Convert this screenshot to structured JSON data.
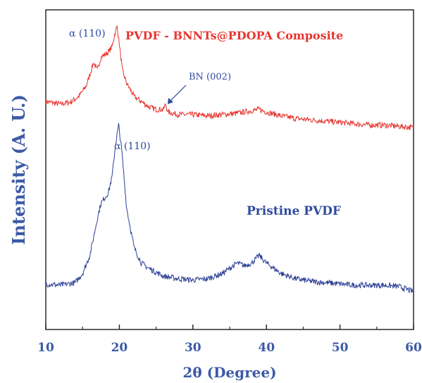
{
  "chart_data": {
    "type": "line",
    "xlabel": "2θ (Degree)",
    "ylabel": "Intensity (A. U.)",
    "xlim": [
      10,
      60
    ],
    "x_ticks": [
      "10",
      "20",
      "30",
      "40",
      "50",
      "60"
    ],
    "y_ticks_labeled": false,
    "grid": false,
    "series": [
      {
        "name": "PVDF - BNNTs@PDOPA Composite",
        "color": "#e8352f",
        "x": [
          10,
          12,
          13.5,
          14.5,
          15.5,
          16.5,
          17,
          17.5,
          18,
          18.5,
          19,
          19.3,
          19.7,
          20,
          20.4,
          21,
          22,
          23,
          24,
          25,
          26,
          26.3,
          26.6,
          28,
          30,
          32,
          34,
          36,
          38,
          39,
          40,
          42,
          44,
          46,
          48,
          50,
          52,
          54,
          56,
          58,
          60
        ],
        "values": [
          0.71,
          0.7,
          0.71,
          0.73,
          0.77,
          0.86,
          0.83,
          0.88,
          0.89,
          0.9,
          0.92,
          0.96,
          1.0,
          0.93,
          0.83,
          0.78,
          0.73,
          0.71,
          0.69,
          0.68,
          0.68,
          0.7,
          0.67,
          0.66,
          0.66,
          0.655,
          0.66,
          0.665,
          0.675,
          0.68,
          0.67,
          0.655,
          0.645,
          0.64,
          0.635,
          0.63,
          0.625,
          0.62,
          0.62,
          0.615,
          0.61
        ]
      },
      {
        "name": "Pristine PVDF",
        "color": "#2b3f96",
        "x": [
          10,
          12,
          14,
          15,
          16,
          17,
          17.5,
          18,
          18.5,
          19,
          19.5,
          19.9,
          20.3,
          21,
          22,
          23,
          24,
          26,
          28,
          30,
          32,
          34,
          36,
          37,
          38,
          39,
          40,
          42,
          44,
          46,
          48,
          50,
          52,
          54,
          56,
          58,
          60
        ],
        "values": [
          0.01,
          0.005,
          0.015,
          0.05,
          0.12,
          0.26,
          0.32,
          0.34,
          0.36,
          0.42,
          0.55,
          0.62,
          0.53,
          0.3,
          0.15,
          0.09,
          0.07,
          0.04,
          0.03,
          0.025,
          0.03,
          0.05,
          0.09,
          0.08,
          0.09,
          0.12,
          0.09,
          0.05,
          0.03,
          0.02,
          0.015,
          0.01,
          0.005,
          0.005,
          0.005,
          0.0,
          -0.02
        ]
      }
    ],
    "annotations": [
      {
        "text": "α (110)",
        "series": 0
      },
      {
        "text": "PVDF - BNNTs@PDOPA Composite",
        "series": 0
      },
      {
        "text": "BN (002)",
        "series": 0
      },
      {
        "text": "α (110)",
        "series": 1
      },
      {
        "text": "Pristine PVDF",
        "series": 1
      }
    ]
  }
}
